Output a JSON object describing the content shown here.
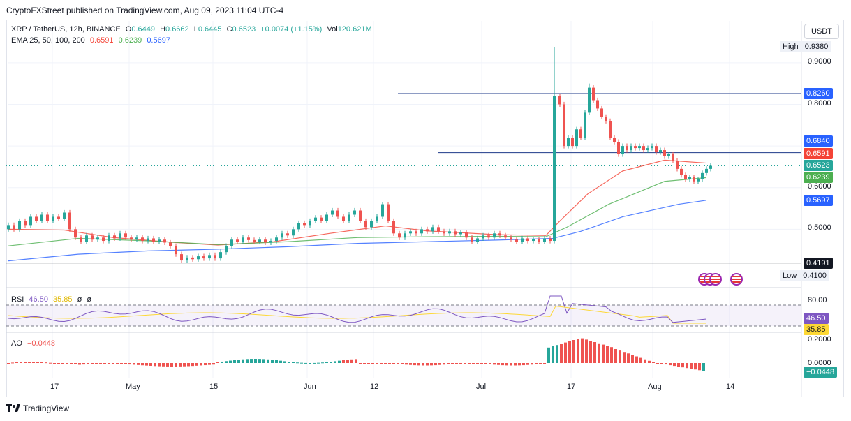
{
  "published_line": "CryptoFXStreet published on TradingView.com, Aug 09, 2023 11:04 UTC-4",
  "header": {
    "symbol": "XRP / TetherUS, 12h, BINANCE",
    "open_label": "O",
    "open": "0.6449",
    "high_label": "H",
    "high": "0.6662",
    "low_label": "L",
    "low": "0.6445",
    "close_label": "C",
    "close": "0.6523",
    "change": "+0.0074 (+1.15%)",
    "volume_label": "Vol",
    "volume": "120.621M"
  },
  "ema_legend": {
    "label": "EMA 25, 50, 100, 200",
    "ema50": "0.6591",
    "ema100": "0.6239",
    "ema200": "0.5697"
  },
  "currency_button": "USDT",
  "high_tag": {
    "label": "High",
    "value": "0.9380"
  },
  "low_tag": {
    "label": "Low",
    "value": "0.4100"
  },
  "price_axis": {
    "ticks": [
      "0.9000",
      "0.8000",
      "0.6000",
      "0.5000"
    ],
    "levels": [
      "0.8260",
      "0.6840",
      "0.4191"
    ],
    "ema_tags": [
      "0.6591",
      "0.6239",
      "0.5697"
    ],
    "last_price": "0.6523"
  },
  "rsi": {
    "label": "RSI",
    "value": "46.50",
    "ma": "35.85",
    "extra1": "ø",
    "extra2": "ø",
    "ticks": [
      "80.00"
    ],
    "value_tag": "46.50",
    "ma_tag": "35.85"
  },
  "ao": {
    "label": "AO",
    "value": "−0.0448",
    "ticks": [
      "0.2000",
      "0.0000"
    ],
    "value_tag": "−0.0448"
  },
  "x_axis": {
    "ticks": [
      "17",
      "May",
      "15",
      "Jun",
      "12",
      "Jul",
      "17",
      "Aug",
      "14"
    ]
  },
  "footer": {
    "brand": "TradingView",
    "logo_icon": "tradingview-logo-icon"
  },
  "colors": {
    "up": "#26a69a",
    "down": "#ef5350",
    "ema50": "#f44336",
    "ema100": "#4caf50",
    "ema200": "#2962ff",
    "rsi": "#7e57c2",
    "rsi_ma": "#fdd835"
  },
  "chart_data": {
    "type": "candlestick",
    "ylim": [
      0.41,
      0.94
    ],
    "horizontal_levels": [
      0.826,
      0.684,
      0.4191
    ],
    "series": [
      {
        "name": "EMA 50",
        "points": [
          [
            0,
            0.5
          ],
          [
            80,
            0.498
          ],
          [
            150,
            0.48
          ],
          [
            240,
            0.468
          ],
          [
            300,
            0.462
          ],
          [
            380,
            0.47
          ],
          [
            460,
            0.49
          ],
          [
            540,
            0.508
          ],
          [
            600,
            0.496
          ],
          [
            700,
            0.487
          ],
          [
            770,
            0.485
          ],
          [
            790,
            0.52
          ],
          [
            830,
            0.585
          ],
          [
            880,
            0.64
          ],
          [
            940,
            0.666
          ],
          [
            1000,
            0.659
          ]
        ]
      },
      {
        "name": "EMA 100",
        "points": [
          [
            0,
            0.46
          ],
          [
            100,
            0.478
          ],
          [
            200,
            0.472
          ],
          [
            300,
            0.463
          ],
          [
            400,
            0.47
          ],
          [
            500,
            0.48
          ],
          [
            600,
            0.482
          ],
          [
            700,
            0.483
          ],
          [
            770,
            0.482
          ],
          [
            800,
            0.505
          ],
          [
            860,
            0.56
          ],
          [
            940,
            0.615
          ],
          [
            1000,
            0.624
          ]
        ]
      },
      {
        "name": "EMA 200",
        "points": [
          [
            0,
            0.424
          ],
          [
            100,
            0.44
          ],
          [
            200,
            0.448
          ],
          [
            300,
            0.452
          ],
          [
            400,
            0.458
          ],
          [
            500,
            0.466
          ],
          [
            600,
            0.47
          ],
          [
            700,
            0.474
          ],
          [
            780,
            0.478
          ],
          [
            820,
            0.495
          ],
          [
            880,
            0.53
          ],
          [
            960,
            0.56
          ],
          [
            1000,
            0.5697
          ]
        ]
      }
    ],
    "candles": [
      [
        0,
        0.5,
        0.51
      ],
      [
        8,
        0.51,
        0.5
      ],
      [
        16,
        0.5,
        0.52
      ],
      [
        24,
        0.52,
        0.51
      ],
      [
        32,
        0.51,
        0.53
      ],
      [
        40,
        0.53,
        0.52
      ],
      [
        48,
        0.52,
        0.535
      ],
      [
        56,
        0.535,
        0.52
      ],
      [
        64,
        0.52,
        0.53
      ],
      [
        72,
        0.53,
        0.525
      ],
      [
        80,
        0.525,
        0.54
      ],
      [
        88,
        0.54,
        0.5
      ],
      [
        96,
        0.5,
        0.48
      ],
      [
        104,
        0.48,
        0.47
      ],
      [
        112,
        0.47,
        0.485
      ],
      [
        120,
        0.485,
        0.475
      ],
      [
        128,
        0.475,
        0.48
      ],
      [
        136,
        0.48,
        0.472
      ],
      [
        144,
        0.472,
        0.485
      ],
      [
        152,
        0.485,
        0.478
      ],
      [
        160,
        0.478,
        0.49
      ],
      [
        168,
        0.49,
        0.48
      ],
      [
        176,
        0.48,
        0.475
      ],
      [
        184,
        0.475,
        0.48
      ],
      [
        192,
        0.48,
        0.472
      ],
      [
        200,
        0.472,
        0.478
      ],
      [
        208,
        0.478,
        0.47
      ],
      [
        216,
        0.47,
        0.475
      ],
      [
        224,
        0.475,
        0.468
      ],
      [
        232,
        0.468,
        0.46
      ],
      [
        240,
        0.46,
        0.44
      ],
      [
        248,
        0.44,
        0.425
      ],
      [
        256,
        0.425,
        0.432
      ],
      [
        264,
        0.432,
        0.428
      ],
      [
        272,
        0.428,
        0.435
      ],
      [
        280,
        0.435,
        0.43
      ],
      [
        288,
        0.43,
        0.438
      ],
      [
        296,
        0.438,
        0.43
      ],
      [
        304,
        0.43,
        0.445
      ],
      [
        312,
        0.445,
        0.46
      ],
      [
        320,
        0.46,
        0.475
      ],
      [
        328,
        0.475,
        0.47
      ],
      [
        336,
        0.47,
        0.48
      ],
      [
        344,
        0.48,
        0.474
      ],
      [
        352,
        0.474,
        0.47
      ],
      [
        360,
        0.47,
        0.475
      ],
      [
        368,
        0.475,
        0.468
      ],
      [
        376,
        0.468,
        0.472
      ],
      [
        384,
        0.472,
        0.48
      ],
      [
        392,
        0.48,
        0.49
      ],
      [
        400,
        0.49,
        0.485
      ],
      [
        408,
        0.485,
        0.5
      ],
      [
        416,
        0.5,
        0.515
      ],
      [
        424,
        0.515,
        0.51
      ],
      [
        432,
        0.51,
        0.52
      ],
      [
        440,
        0.52,
        0.528
      ],
      [
        448,
        0.528,
        0.52
      ],
      [
        456,
        0.52,
        0.535
      ],
      [
        464,
        0.535,
        0.545
      ],
      [
        472,
        0.545,
        0.53
      ],
      [
        480,
        0.53,
        0.52
      ],
      [
        488,
        0.52,
        0.535
      ],
      [
        496,
        0.535,
        0.545
      ],
      [
        504,
        0.545,
        0.52
      ],
      [
        512,
        0.52,
        0.505
      ],
      [
        520,
        0.505,
        0.52
      ],
      [
        528,
        0.52,
        0.53
      ],
      [
        536,
        0.53,
        0.56
      ],
      [
        544,
        0.56,
        0.52
      ],
      [
        552,
        0.52,
        0.49
      ],
      [
        560,
        0.49,
        0.48
      ],
      [
        568,
        0.48,
        0.49
      ],
      [
        576,
        0.49,
        0.495
      ],
      [
        584,
        0.495,
        0.49
      ],
      [
        592,
        0.49,
        0.5
      ],
      [
        600,
        0.5,
        0.495
      ],
      [
        608,
        0.495,
        0.505
      ],
      [
        616,
        0.505,
        0.495
      ],
      [
        624,
        0.495,
        0.49
      ],
      [
        632,
        0.49,
        0.495
      ],
      [
        640,
        0.495,
        0.488
      ],
      [
        648,
        0.488,
        0.492
      ],
      [
        656,
        0.492,
        0.48
      ],
      [
        664,
        0.48,
        0.47
      ],
      [
        672,
        0.47,
        0.478
      ],
      [
        680,
        0.478,
        0.485
      ],
      [
        688,
        0.485,
        0.48
      ],
      [
        696,
        0.48,
        0.49
      ],
      [
        704,
        0.49,
        0.485
      ],
      [
        712,
        0.485,
        0.48
      ],
      [
        720,
        0.48,
        0.475
      ],
      [
        728,
        0.475,
        0.47
      ],
      [
        736,
        0.47,
        0.478
      ],
      [
        744,
        0.478,
        0.472
      ],
      [
        752,
        0.472,
        0.476
      ],
      [
        760,
        0.476,
        0.47
      ],
      [
        768,
        0.47,
        0.478
      ],
      [
        776,
        0.478,
        0.472
      ],
      [
        782,
        0.472,
        0.82
      ],
      [
        790,
        0.82,
        0.8
      ],
      [
        796,
        0.8,
        0.7
      ],
      [
        802,
        0.7,
        0.72
      ],
      [
        808,
        0.72,
        0.7
      ],
      [
        814,
        0.7,
        0.74
      ],
      [
        820,
        0.74,
        0.72
      ],
      [
        826,
        0.72,
        0.78
      ],
      [
        832,
        0.78,
        0.84
      ],
      [
        838,
        0.84,
        0.81
      ],
      [
        844,
        0.81,
        0.79
      ],
      [
        850,
        0.79,
        0.77
      ],
      [
        856,
        0.77,
        0.76
      ],
      [
        862,
        0.76,
        0.72
      ],
      [
        868,
        0.72,
        0.71
      ],
      [
        874,
        0.71,
        0.68
      ],
      [
        880,
        0.68,
        0.7
      ],
      [
        886,
        0.7,
        0.69
      ],
      [
        892,
        0.69,
        0.7
      ],
      [
        898,
        0.7,
        0.695
      ],
      [
        904,
        0.695,
        0.7
      ],
      [
        910,
        0.7,
        0.69
      ],
      [
        916,
        0.69,
        0.695
      ],
      [
        922,
        0.695,
        0.7
      ],
      [
        928,
        0.7,
        0.685
      ],
      [
        934,
        0.685,
        0.69
      ],
      [
        940,
        0.69,
        0.675
      ],
      [
        946,
        0.675,
        0.68
      ],
      [
        952,
        0.68,
        0.665
      ],
      [
        958,
        0.665,
        0.645
      ],
      [
        964,
        0.645,
        0.63
      ],
      [
        970,
        0.63,
        0.62
      ],
      [
        976,
        0.62,
        0.625
      ],
      [
        982,
        0.625,
        0.615
      ],
      [
        988,
        0.615,
        0.62
      ],
      [
        994,
        0.62,
        0.635
      ],
      [
        1000,
        0.635,
        0.645
      ],
      [
        1006,
        0.645,
        0.6523
      ]
    ]
  }
}
